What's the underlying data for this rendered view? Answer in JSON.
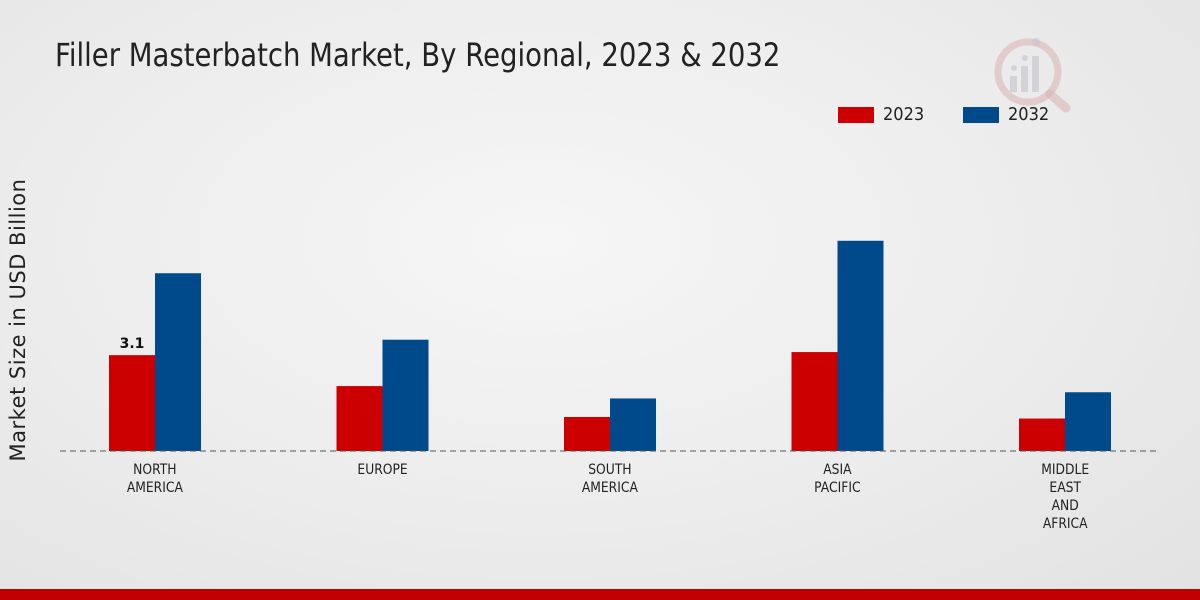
{
  "chart_data": {
    "type": "bar",
    "title": "Filler Masterbatch Market, By Regional, 2023 & 2032",
    "xlabel": "",
    "ylabel": "Market Size in USD Billion",
    "categories": [
      "NORTH\nAMERICA",
      "EUROPE",
      "SOUTH\nAMERICA",
      "ASIA\nPACIFIC",
      "MIDDLE\nEAST\nAND\nAFRICA"
    ],
    "series": [
      {
        "name": "2023",
        "color": "#cc0000",
        "values": [
          3.1,
          2.1,
          1.1,
          3.2,
          1.05
        ]
      },
      {
        "name": "2032",
        "color": "#004a8c",
        "values": [
          5.75,
          3.6,
          1.7,
          6.8,
          1.9
        ]
      }
    ],
    "data_labels": [
      {
        "series": "2023",
        "category_index": 0,
        "text": "3.1"
      }
    ],
    "ylim": [
      0,
      12
    ],
    "grid": false,
    "legend_position": "top-right"
  }
}
